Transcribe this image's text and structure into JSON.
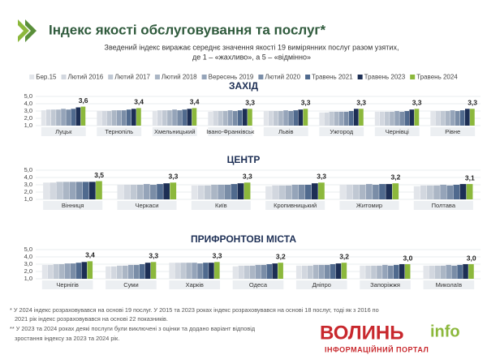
{
  "header": {
    "title": "Індекс якості обслуговування та послуг*",
    "subtitle": [
      "Зведений індекс виражає середнє значення якості 19 вимірянних послуг разом узятих,",
      "де 1 – «жахливо», а 5 – «відмінно»"
    ]
  },
  "chart_data": [
    {
      "type": "bar",
      "title": "ЗАХІД",
      "categories": [
        "Луцьк",
        "Тернопіль",
        "Хмельницький",
        "Івано-Франківськ",
        "Львів",
        "Ужгород",
        "Чернівці",
        "Рівне"
      ],
      "ylim": [
        1,
        5
      ],
      "yticks": [
        {
          "value": 1,
          "label": "1,0"
        },
        {
          "value": 2,
          "label": "2,0"
        },
        {
          "value": 3,
          "label": "3,0"
        },
        {
          "value": 4,
          "label": "4,0"
        },
        {
          "value": 5,
          "label": "5,0"
        }
      ],
      "grid": true,
      "series": [
        {
          "name": "Бер.15",
          "color": "#e2e5ea",
          "values": [
            3.1,
            3.0,
            3.0,
            2.9,
            3.0,
            2.8,
            2.9,
            3.0
          ]
        },
        {
          "name": "Лютий 2016",
          "color": "#d2d7df",
          "values": [
            3.2,
            3.0,
            3.1,
            3.0,
            3.0,
            2.8,
            2.9,
            3.0
          ]
        },
        {
          "name": "Лютий 2017",
          "color": "#c0c8d3",
          "values": [
            3.2,
            3.0,
            3.1,
            3.0,
            3.0,
            2.9,
            2.9,
            3.0
          ]
        },
        {
          "name": "Лютий 2018",
          "color": "#abb6c5",
          "values": [
            3.2,
            3.1,
            3.1,
            3.0,
            3.0,
            2.9,
            2.9,
            3.0
          ]
        },
        {
          "name": "Вересень 2019",
          "color": "#95a4b9",
          "values": [
            3.3,
            3.1,
            3.2,
            3.1,
            3.1,
            2.9,
            3.0,
            3.1
          ]
        },
        {
          "name": "Лютий 2020",
          "color": "#7a8da7",
          "values": [
            3.2,
            3.1,
            3.1,
            3.0,
            3.0,
            2.9,
            2.9,
            3.0
          ]
        },
        {
          "name": "Травень 2021",
          "color": "#506a8e",
          "values": [
            3.3,
            3.2,
            3.2,
            3.1,
            3.1,
            3.0,
            3.0,
            3.1
          ]
        },
        {
          "name": "Травень 2023",
          "color": "#1d2f55",
          "values": [
            3.5,
            3.3,
            3.3,
            3.3,
            3.2,
            3.3,
            3.2,
            3.3
          ]
        },
        {
          "name": "Травень 2024",
          "color": "#8cb83c",
          "values": [
            3.6,
            3.4,
            3.4,
            3.3,
            3.3,
            3.3,
            3.3,
            3.3
          ],
          "value_labels": [
            "3,6",
            "3,4",
            "3,4",
            "3,3",
            "3,3",
            "3,3",
            "3,3",
            "3,3"
          ]
        }
      ]
    },
    {
      "type": "bar",
      "title": "ЦЕНТР",
      "categories": [
        "Вінниця",
        "Черкаси",
        "Київ",
        "Кропивницький",
        "Житомир",
        "Полтава"
      ],
      "ylim": [
        1,
        5
      ],
      "yticks": [
        {
          "value": 1,
          "label": "1,0"
        },
        {
          "value": 2,
          "label": "2,0"
        },
        {
          "value": 3,
          "label": "3,0"
        },
        {
          "value": 4,
          "label": "4,0"
        },
        {
          "value": 5,
          "label": "5,0"
        }
      ],
      "grid": true,
      "series": [
        {
          "name": "Бер.15",
          "color": "#e2e5ea",
          "values": [
            3.3,
            3.0,
            2.9,
            2.8,
            3.0,
            2.8
          ]
        },
        {
          "name": "Лютий 2016",
          "color": "#d2d7df",
          "values": [
            3.3,
            3.0,
            2.9,
            2.9,
            3.0,
            2.9
          ]
        },
        {
          "name": "Лютий 2017",
          "color": "#c0c8d3",
          "values": [
            3.4,
            3.0,
            2.9,
            2.9,
            3.0,
            2.9
          ]
        },
        {
          "name": "Лютий 2018",
          "color": "#abb6c5",
          "values": [
            3.4,
            3.0,
            3.0,
            2.9,
            3.0,
            2.9
          ]
        },
        {
          "name": "Вересень 2019",
          "color": "#95a4b9",
          "values": [
            3.4,
            3.1,
            3.0,
            3.0,
            3.1,
            3.0
          ]
        },
        {
          "name": "Лютий 2020",
          "color": "#7a8da7",
          "values": [
            3.4,
            3.0,
            3.0,
            3.0,
            3.0,
            2.9
          ]
        },
        {
          "name": "Травень 2021",
          "color": "#506a8e",
          "values": [
            3.4,
            3.1,
            3.1,
            3.0,
            3.1,
            3.0
          ]
        },
        {
          "name": "Травень 2023",
          "color": "#1d2f55",
          "values": [
            3.4,
            3.2,
            3.2,
            3.2,
            3.1,
            3.1
          ]
        },
        {
          "name": "Травень 2024",
          "color": "#8cb83c",
          "values": [
            3.5,
            3.3,
            3.3,
            3.3,
            3.2,
            3.1
          ],
          "value_labels": [
            "3,5",
            "3,3",
            "3,3",
            "3,3",
            "3,2",
            "3,1"
          ]
        }
      ]
    },
    {
      "type": "bar",
      "title": "ПРИФРОНТОВІ МІСТА",
      "categories": [
        "Чернігів",
        "Суми",
        "Харків",
        "Одеса",
        "Дніпро",
        "Запоріжжя",
        "Миколаїв"
      ],
      "ylim": [
        1,
        5
      ],
      "yticks": [
        {
          "value": 1,
          "label": "1,0"
        },
        {
          "value": 2,
          "label": "2,0"
        },
        {
          "value": 3,
          "label": "3,0"
        },
        {
          "value": 4,
          "label": "4,0"
        },
        {
          "value": 5,
          "label": "5,0"
        }
      ],
      "grid": true,
      "series": [
        {
          "name": "Бер.15",
          "color": "#e2e5ea",
          "values": [
            2.9,
            2.7,
            3.2,
            2.7,
            2.8,
            2.8,
            2.8
          ]
        },
        {
          "name": "Лютий 2016",
          "color": "#d2d7df",
          "values": [
            2.9,
            2.7,
            3.2,
            2.8,
            2.8,
            2.8,
            2.8
          ]
        },
        {
          "name": "Лютий 2017",
          "color": "#c0c8d3",
          "values": [
            3.0,
            2.8,
            3.2,
            2.8,
            2.8,
            2.8,
            2.8
          ]
        },
        {
          "name": "Лютий 2018",
          "color": "#abb6c5",
          "values": [
            3.0,
            2.8,
            3.2,
            2.8,
            2.9,
            2.8,
            2.8
          ]
        },
        {
          "name": "Вересень 2019",
          "color": "#95a4b9",
          "values": [
            3.1,
            2.9,
            3.2,
            2.9,
            2.9,
            2.9,
            2.9
          ]
        },
        {
          "name": "Лютий 2020",
          "color": "#7a8da7",
          "values": [
            3.1,
            2.9,
            3.1,
            2.9,
            2.9,
            2.8,
            2.8
          ]
        },
        {
          "name": "Травень 2021",
          "color": "#506a8e",
          "values": [
            3.2,
            3.0,
            3.2,
            3.0,
            3.0,
            2.9,
            2.9
          ]
        },
        {
          "name": "Травень 2023",
          "color": "#1d2f55",
          "values": [
            3.3,
            3.2,
            3.2,
            3.1,
            3.1,
            3.0,
            3.0
          ]
        },
        {
          "name": "Травень 2024",
          "color": "#8cb83c",
          "values": [
            3.4,
            3.3,
            3.3,
            3.2,
            3.2,
            3.0,
            3.0
          ],
          "value_labels": [
            "3,4",
            "3,3",
            "3,3",
            "3,2",
            "3,2",
            "3,0",
            "3,0"
          ]
        }
      ]
    }
  ],
  "footnotes": [
    "* У 2024 індекс розраховувався на основі 19 послуг. У 2015 та 2023 роках індекс розраховувався на основі 18 послуг, тоді як з 2016 по",
    "2021 рік індекс розраховувався на основі 22 показників.",
    "** У 2023 та 2024 роках деякі послуги були виключені з оцінки та додано варіант відповід",
    "зростання індексу за 2023 та 2024 рік."
  ],
  "watermark": {
    "brand": "ВОЛИНЬ",
    "brand_suffix": "info",
    "tagline": "ІНФОРМАЦІЙНИЙ ПОРТАЛ"
  }
}
